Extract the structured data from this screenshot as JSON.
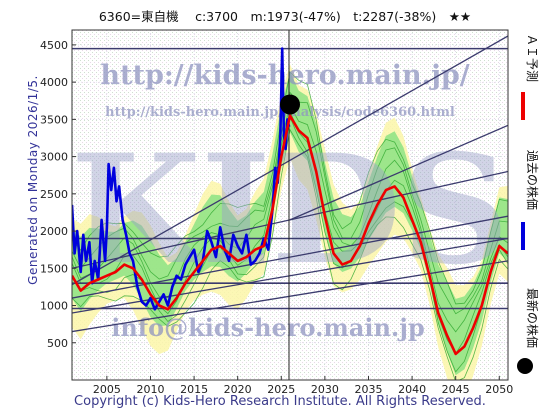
{
  "header": {
    "title": "6360=東自機　 c:3700　m:1973(-47%)　t:2287(-38%)　★★"
  },
  "generated": "Generated on Monday 2026/1/5.",
  "copyright": "Copyright (c) Kids-Hero Research Institute. All Rights Reserved.",
  "watermarks": {
    "big": "KIDS",
    "url": "http://kids-hero.main.jp/",
    "analysis": "http://kids-hero.main.jp/analysis/code6360.html",
    "email": "info@kids-hero.main.jp"
  },
  "legend": {
    "ai_forecast": "ＡＩ予測",
    "past_price": "過去の株価",
    "latest_price": "最新の株価"
  },
  "colors": {
    "ai_forecast": "#ee0000",
    "past_price": "#0000dd",
    "latest_price": "#000000",
    "band_green": "#7ee07e",
    "band_yellow": "#fbf6a8",
    "trend_lines": "#3b3b6e"
  },
  "chart_data": {
    "type": "line",
    "xlim": [
      2001,
      2051
    ],
    "ylim": [
      0,
      4700
    ],
    "x_ticks": [
      2005,
      2010,
      2015,
      2020,
      2025,
      2030,
      2035,
      2040,
      2045,
      2050
    ],
    "y_ticks": [
      500,
      1000,
      1500,
      2000,
      2500,
      3000,
      3500,
      4000,
      4500
    ],
    "series": [
      {
        "name": "過去の株価",
        "x": [
          2001,
          2001.3,
          2001.6,
          2002,
          2002.3,
          2002.6,
          2003,
          2003.3,
          2003.6,
          2004,
          2004.4,
          2004.8,
          2005,
          2005.2,
          2005.5,
          2005.8,
          2006.1,
          2006.4,
          2006.8,
          2007.2,
          2007.6,
          2008,
          2008.5,
          2009,
          2009.5,
          2010,
          2010.5,
          2011,
          2011.5,
          2012,
          2012.5,
          2013,
          2013.5,
          2014,
          2014.5,
          2015,
          2015.5,
          2016,
          2016.5,
          2017,
          2017.5,
          2018,
          2018.5,
          2019,
          2019.5,
          2020,
          2020.5,
          2021,
          2021.5,
          2022,
          2022.5,
          2023,
          2023.5,
          2024,
          2024.3,
          2024.6,
          2024.9,
          2025.1,
          2025.3,
          2025.5,
          2025.7,
          2025.9
        ],
        "y": [
          2350,
          1700,
          2000,
          1450,
          1950,
          1600,
          1850,
          1300,
          1600,
          1350,
          2150,
          1600,
          2050,
          2900,
          2550,
          2850,
          2400,
          2600,
          2150,
          1950,
          1700,
          1600,
          1250,
          1050,
          1000,
          1100,
          950,
          1050,
          1150,
          1000,
          1250,
          1400,
          1350,
          1550,
          1650,
          1750,
          1450,
          1600,
          2000,
          1850,
          1650,
          2050,
          1750,
          1600,
          1950,
          1800,
          1700,
          1950,
          1550,
          1600,
          1700,
          1900,
          1750,
          2300,
          2850,
          2650,
          3300,
          4450,
          3300,
          3100,
          3500,
          3400
        ]
      },
      {
        "name": "ＡＩ予測",
        "x": [
          2001,
          2002,
          2003,
          2004,
          2005,
          2006,
          2007,
          2008,
          2009,
          2010,
          2011,
          2012,
          2013,
          2014,
          2015,
          2016,
          2017,
          2018,
          2019,
          2020,
          2021,
          2022,
          2023,
          2024,
          2025,
          2026,
          2027,
          2028,
          2029,
          2030,
          2031,
          2032,
          2033,
          2034,
          2035,
          2036,
          2037,
          2038,
          2039,
          2040,
          2041,
          2042,
          2043,
          2044,
          2045,
          2046,
          2047,
          2048,
          2049,
          2050,
          2051
        ],
        "y": [
          1400,
          1200,
          1300,
          1350,
          1400,
          1450,
          1550,
          1500,
          1350,
          1150,
          1000,
          950,
          1100,
          1300,
          1450,
          1600,
          1750,
          1800,
          1700,
          1600,
          1650,
          1750,
          1800,
          2300,
          3000,
          3550,
          3350,
          3250,
          2800,
          2200,
          1700,
          1550,
          1600,
          1800,
          2100,
          2350,
          2550,
          2600,
          2450,
          2150,
          1850,
          1400,
          900,
          600,
          350,
          450,
          700,
          1000,
          1450,
          1800,
          1700
        ]
      }
    ],
    "latest": {
      "x": 2026,
      "y": 3700
    }
  }
}
